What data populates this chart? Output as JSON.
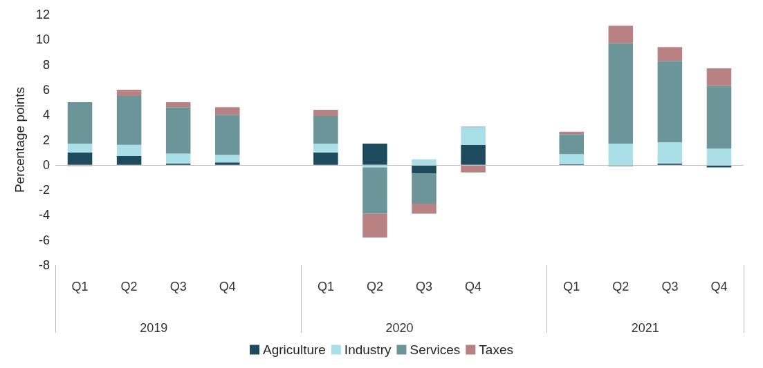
{
  "chart_data": {
    "type": "bar",
    "stacked": true,
    "ylabel": "Percentage points",
    "categories": [
      "Q1",
      "Q2",
      "Q3",
      "Q4",
      null,
      "Q1",
      "Q2",
      "Q3",
      "Q4",
      null,
      "Q1",
      "Q2",
      "Q3",
      "Q4"
    ],
    "series": [
      {
        "name": "Agriculture",
        "color": "#1e4a5e",
        "values": [
          1.0,
          0.7,
          0.1,
          0.2,
          null,
          1.0,
          1.7,
          -0.7,
          1.6,
          null,
          0.05,
          -0.1,
          0.1,
          -0.2
        ]
      },
      {
        "name": "Industry",
        "color": "#abdfe8",
        "values": [
          0.7,
          0.9,
          0.8,
          0.6,
          null,
          0.7,
          -0.2,
          0.45,
          1.4,
          null,
          0.8,
          1.7,
          1.7,
          1.3
        ]
      },
      {
        "name": "Services",
        "color": "#6b9598",
        "values": [
          3.3,
          3.9,
          3.7,
          3.2,
          null,
          2.2,
          -3.7,
          -2.4,
          0.05,
          null,
          1.6,
          8.0,
          6.5,
          5.0
        ]
      },
      {
        "name": "Taxes",
        "color": "#b88283",
        "values": [
          -0.1,
          0.5,
          0.4,
          0.6,
          null,
          0.5,
          -1.9,
          -0.8,
          -0.6,
          null,
          0.2,
          1.4,
          1.1,
          1.4
        ]
      }
    ],
    "annotations": [
      "2019",
      "2020",
      "2021"
    ],
    "ylim": [
      -8,
      12
    ],
    "yticks": [
      -8,
      -6,
      -4,
      -2,
      0,
      2,
      4,
      6,
      8,
      10,
      12
    ],
    "ref_lines": [
      {
        "axis": "y",
        "value": 0,
        "color": "#bfbfbf"
      }
    ],
    "grid": false,
    "legend": "bottom"
  }
}
